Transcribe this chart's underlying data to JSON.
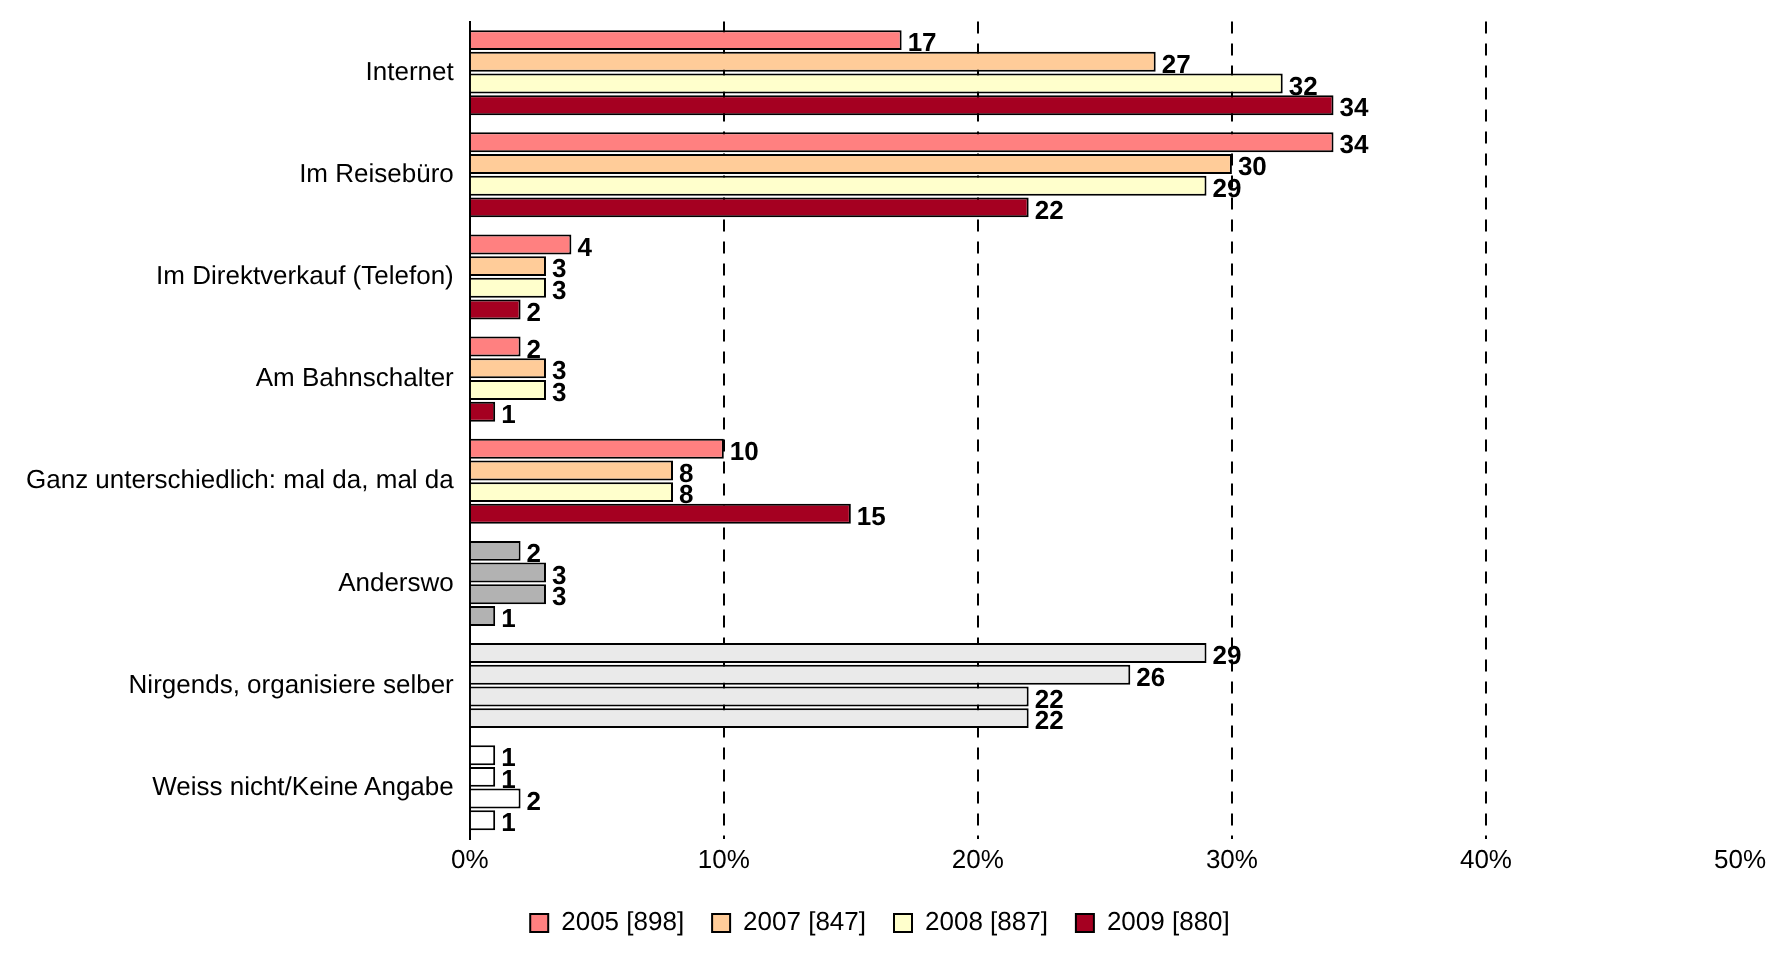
{
  "chart_data": {
    "type": "bar",
    "orientation": "horizontal",
    "categories": [
      "Internet",
      "Im Reisebüro",
      "Im Direktverkauf (Telefon)",
      "Am Bahnschalter",
      "Ganz unterschiedlich: mal da, mal da",
      "Anderswo",
      "Nirgends, organisiere selber",
      "Weiss nicht/Keine Angabe"
    ],
    "series": [
      {
        "name": "2005 [898]",
        "color": "#ff8080",
        "colors": [
          "#ff8080",
          "#ff8080",
          "#ff8080",
          "#ff8080",
          "#ff8080",
          "#b2b2b2",
          "#eaeaea",
          "#ffffff"
        ],
        "values": [
          17,
          34,
          4,
          2,
          10,
          2,
          29,
          1
        ]
      },
      {
        "name": "2007 [847]",
        "color": "#ffcc99",
        "colors": [
          "#ffcc99",
          "#ffcc99",
          "#ffcc99",
          "#ffcc99",
          "#ffcc99",
          "#b2b2b2",
          "#eaeaea",
          "#ffffff"
        ],
        "values": [
          27,
          30,
          3,
          3,
          8,
          3,
          26,
          1
        ]
      },
      {
        "name": "2008 [887]",
        "color": "#ffffcc",
        "colors": [
          "#ffffcc",
          "#ffffcc",
          "#ffffcc",
          "#ffffcc",
          "#ffffcc",
          "#b2b2b2",
          "#eaeaea",
          "#ffffff"
        ],
        "values": [
          32,
          29,
          3,
          3,
          8,
          3,
          22,
          2
        ]
      },
      {
        "name": "2009 [880]",
        "color": "#a50021",
        "colors": [
          "#a50021",
          "#a50021",
          "#a50021",
          "#a50021",
          "#a50021",
          "#b2b2b2",
          "#eaeaea",
          "#ffffff"
        ],
        "values": [
          34,
          22,
          2,
          1,
          15,
          1,
          22,
          1
        ]
      }
    ],
    "xlim": [
      0,
      50
    ],
    "xticks": [
      {
        "value": 0,
        "label": "0%"
      },
      {
        "value": 10,
        "label": "10%"
      },
      {
        "value": 20,
        "label": "20%"
      },
      {
        "value": 30,
        "label": "30%"
      },
      {
        "value": 40,
        "label": "40%"
      },
      {
        "value": 50,
        "label": "50%"
      }
    ],
    "grid": "x",
    "legend": "bottom",
    "data_labels": true
  }
}
